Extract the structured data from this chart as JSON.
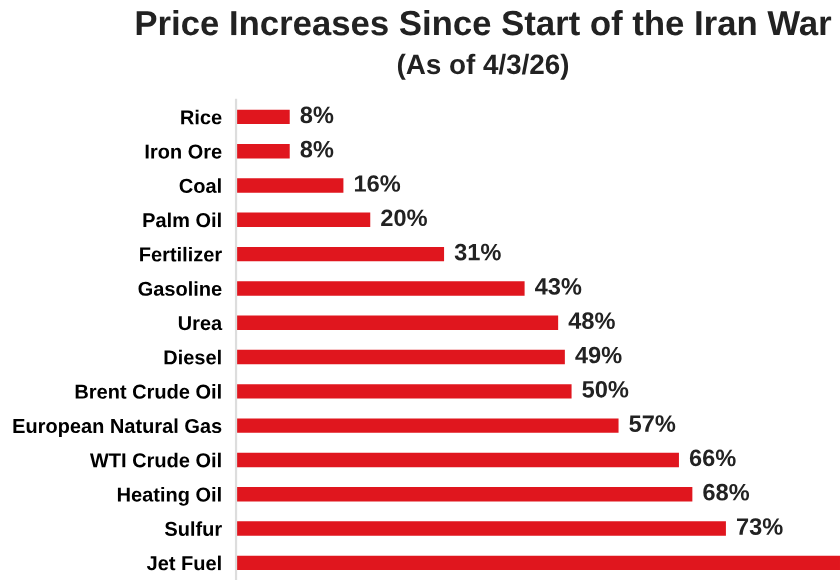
{
  "chart_data": {
    "type": "bar",
    "orientation": "horizontal",
    "title": "Price Increases Since Start of the Iran War",
    "subtitle": "(As of 4/3/26)",
    "categories": [
      "Rice",
      "Iron Ore",
      "Coal",
      "Palm Oil",
      "Fertilizer",
      "Gasoline",
      "Urea",
      "Diesel",
      "Brent Crude Oil",
      "European Natural Gas",
      "WTI Crude Oil",
      "Heating Oil",
      "Sulfur",
      "Jet Fuel"
    ],
    "values": [
      8,
      8,
      16,
      20,
      31,
      43,
      48,
      49,
      50,
      57,
      66,
      68,
      73,
      90
    ],
    "value_labels": [
      "8%",
      "8%",
      "16%",
      "20%",
      "31%",
      "43%",
      "48%",
      "49%",
      "50%",
      "57%",
      "66%",
      "68%",
      "73%",
      null
    ],
    "color": "#e0161e",
    "xlim": [
      0,
      90
    ],
    "grid": false,
    "legend": false
  }
}
